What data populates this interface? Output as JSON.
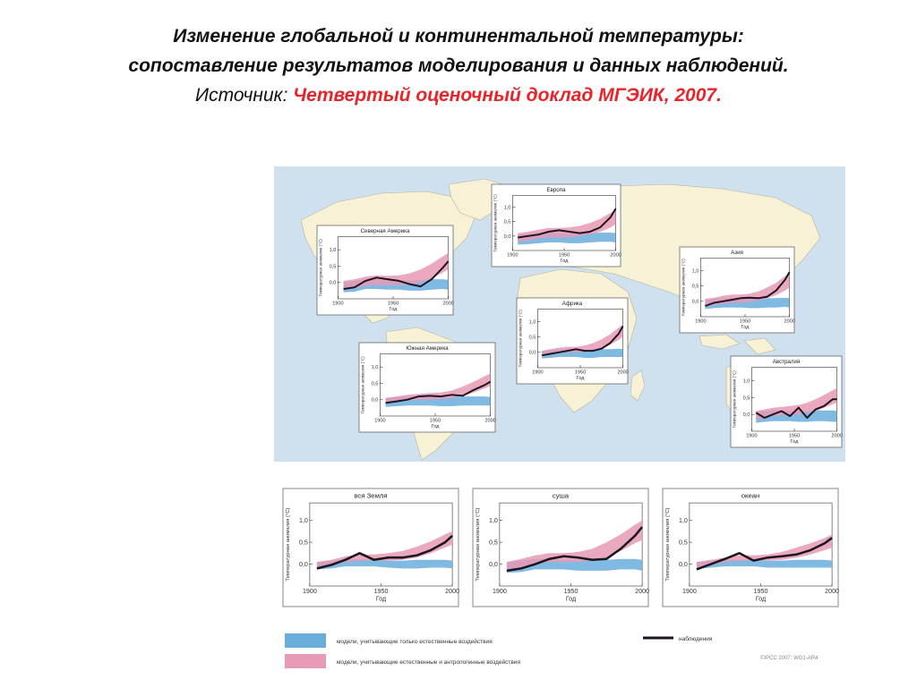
{
  "slide": {
    "title_line1": "Изменение глобальной и континентальной температуры:",
    "title_line2": "сопоставление результатов моделирования и данных наблюдений.",
    "source_label": "Источник:",
    "source_name": "Четвертый оценочный доклад МГЭИК, 2007."
  },
  "colors": {
    "ocean": "#cfe0ee",
    "land": "#f7f2d6",
    "natural_band": "#6aaede",
    "combined_band": "#e79ab5",
    "observed": "#1c1420"
  },
  "chart_data": [
    {
      "type": "line",
      "title": "Северная Америка",
      "xlabel": "Год",
      "ylabel": "Температурная аномалия (°C)",
      "x_ticks": [
        "1900",
        "1950",
        "2000"
      ],
      "y_ticks": [
        "1,0",
        "0,5",
        "0,0"
      ],
      "xlim": [
        1900,
        2000
      ],
      "ylim": [
        -0.5,
        1.4
      ],
      "x": [
        1905,
        1915,
        1925,
        1935,
        1945,
        1955,
        1965,
        1975,
        1985,
        1995,
        2000
      ],
      "observed": [
        -0.2,
        -0.15,
        0.05,
        0.15,
        0.1,
        0.05,
        -0.05,
        -0.12,
        0.1,
        0.45,
        0.65
      ],
      "natural_low": [
        -0.3,
        -0.28,
        -0.2,
        -0.2,
        -0.22,
        -0.22,
        -0.25,
        -0.25,
        -0.22,
        -0.2,
        -0.22
      ],
      "natural_high": [
        0.02,
        0.05,
        0.08,
        0.1,
        0.08,
        0.08,
        0.05,
        0.08,
        0.1,
        0.1,
        0.08
      ],
      "combined_low": [
        -0.22,
        -0.18,
        -0.1,
        -0.08,
        -0.08,
        -0.08,
        -0.05,
        0.0,
        0.12,
        0.3,
        0.4
      ],
      "combined_high": [
        0.05,
        0.1,
        0.18,
        0.22,
        0.2,
        0.22,
        0.28,
        0.4,
        0.58,
        0.8,
        0.9
      ]
    },
    {
      "type": "line",
      "title": "Европа",
      "xlabel": "Год",
      "ylabel": "Температурная аномалия (°C)",
      "x_ticks": [
        "1900",
        "1950",
        "2000"
      ],
      "y_ticks": [
        "1,0",
        "0,5",
        "0,0"
      ],
      "xlim": [
        1900,
        2000
      ],
      "ylim": [
        -0.5,
        1.4
      ],
      "x": [
        1905,
        1915,
        1925,
        1935,
        1945,
        1955,
        1965,
        1975,
        1985,
        1995,
        2000
      ],
      "observed": [
        -0.05,
        0.0,
        0.05,
        0.15,
        0.2,
        0.15,
        0.1,
        0.15,
        0.3,
        0.65,
        0.95
      ],
      "natural_low": [
        -0.3,
        -0.28,
        -0.25,
        -0.22,
        -0.22,
        -0.25,
        -0.25,
        -0.22,
        -0.2,
        -0.2,
        -0.22
      ],
      "natural_high": [
        0.05,
        0.08,
        0.12,
        0.12,
        0.1,
        0.08,
        0.08,
        0.1,
        0.12,
        0.12,
        0.1
      ],
      "combined_low": [
        -0.2,
        -0.15,
        -0.08,
        -0.05,
        -0.05,
        -0.05,
        0.0,
        0.05,
        0.15,
        0.3,
        0.4
      ],
      "combined_high": [
        0.1,
        0.15,
        0.22,
        0.28,
        0.28,
        0.3,
        0.35,
        0.45,
        0.6,
        0.8,
        0.92
      ]
    },
    {
      "type": "line",
      "title": "Азия",
      "xlabel": "Год",
      "ylabel": "Температурная аномалия (°C)",
      "x_ticks": [
        "1900",
        "1950",
        "2000"
      ],
      "y_ticks": [
        "1,0",
        "0,5",
        "0,0"
      ],
      "xlim": [
        1900,
        2000
      ],
      "ylim": [
        -0.5,
        1.4
      ],
      "x": [
        1905,
        1915,
        1925,
        1935,
        1945,
        1955,
        1965,
        1975,
        1985,
        1995,
        2000
      ],
      "observed": [
        -0.15,
        -0.05,
        0.0,
        0.05,
        0.1,
        0.12,
        0.1,
        0.15,
        0.35,
        0.7,
        0.95
      ],
      "natural_low": [
        -0.25,
        -0.22,
        -0.2,
        -0.2,
        -0.2,
        -0.22,
        -0.22,
        -0.2,
        -0.2,
        -0.18,
        -0.2
      ],
      "natural_high": [
        0.05,
        0.08,
        0.1,
        0.1,
        0.08,
        0.08,
        0.08,
        0.1,
        0.1,
        0.12,
        0.1
      ],
      "combined_low": [
        -0.18,
        -0.12,
        -0.08,
        -0.05,
        -0.05,
        -0.02,
        0.02,
        0.1,
        0.2,
        0.35,
        0.45
      ],
      "combined_high": [
        0.08,
        0.12,
        0.18,
        0.22,
        0.22,
        0.25,
        0.32,
        0.45,
        0.6,
        0.82,
        0.92
      ]
    },
    {
      "type": "line",
      "title": "Африка",
      "xlabel": "Год",
      "ylabel": "Температурная аномалия (°C)",
      "x_ticks": [
        "1900",
        "1950",
        "2000"
      ],
      "y_ticks": [
        "1,0",
        "0,5",
        "0,0"
      ],
      "xlim": [
        1900,
        2000
      ],
      "ylim": [
        -0.5,
        1.4
      ],
      "x": [
        1905,
        1915,
        1925,
        1935,
        1945,
        1955,
        1965,
        1975,
        1985,
        1995,
        2000
      ],
      "observed": [
        -0.1,
        -0.05,
        0.0,
        0.05,
        0.1,
        0.05,
        0.05,
        0.12,
        0.3,
        0.6,
        0.85
      ],
      "natural_low": [
        -0.2,
        -0.18,
        -0.15,
        -0.15,
        -0.15,
        -0.18,
        -0.18,
        -0.15,
        -0.15,
        -0.15,
        -0.15
      ],
      "natural_high": [
        0.05,
        0.08,
        0.1,
        0.1,
        0.08,
        0.08,
        0.08,
        0.1,
        0.1,
        0.12,
        0.1
      ],
      "combined_low": [
        -0.12,
        -0.08,
        -0.02,
        0.0,
        0.0,
        0.02,
        0.05,
        0.12,
        0.25,
        0.4,
        0.5
      ],
      "combined_high": [
        0.05,
        0.1,
        0.15,
        0.18,
        0.18,
        0.22,
        0.3,
        0.42,
        0.58,
        0.8,
        0.9
      ]
    },
    {
      "type": "line",
      "title": "Южная Америка",
      "xlabel": "Год",
      "ylabel": "Температурная аномалия (°C)",
      "x_ticks": [
        "1900",
        "1950",
        "2000"
      ],
      "y_ticks": [
        "1,0",
        "0,5",
        "0,0"
      ],
      "xlim": [
        1900,
        2000
      ],
      "ylim": [
        -0.5,
        1.4
      ],
      "x": [
        1905,
        1915,
        1925,
        1935,
        1945,
        1955,
        1965,
        1975,
        1985,
        1995,
        2000
      ],
      "observed": [
        -0.1,
        -0.05,
        0.0,
        0.1,
        0.12,
        0.1,
        0.15,
        0.12,
        0.3,
        0.45,
        0.55
      ],
      "natural_low": [
        -0.22,
        -0.2,
        -0.18,
        -0.18,
        -0.18,
        -0.2,
        -0.2,
        -0.18,
        -0.18,
        -0.18,
        -0.18
      ],
      "natural_high": [
        0.05,
        0.08,
        0.1,
        0.1,
        0.08,
        0.08,
        0.08,
        0.1,
        0.1,
        0.1,
        0.08
      ],
      "combined_low": [
        -0.12,
        -0.08,
        -0.02,
        0.0,
        0.0,
        0.02,
        0.05,
        0.12,
        0.22,
        0.35,
        0.42
      ],
      "combined_high": [
        0.05,
        0.1,
        0.15,
        0.18,
        0.2,
        0.22,
        0.28,
        0.4,
        0.55,
        0.72,
        0.8
      ]
    },
    {
      "type": "line",
      "title": "Австралия",
      "xlabel": "Год",
      "ylabel": "Температурная аномалия (°C)",
      "x_ticks": [
        "1900",
        "1950",
        "2000"
      ],
      "y_ticks": [
        "1,0",
        "0,5",
        "0,0"
      ],
      "xlim": [
        1900,
        2000
      ],
      "ylim": [
        -0.5,
        1.4
      ],
      "x": [
        1905,
        1915,
        1925,
        1935,
        1945,
        1955,
        1965,
        1975,
        1985,
        1995,
        2000
      ],
      "observed": [
        0.05,
        -0.1,
        0.0,
        0.1,
        -0.05,
        0.2,
        -0.1,
        0.15,
        0.25,
        0.45,
        0.45
      ],
      "natural_low": [
        -0.25,
        -0.22,
        -0.2,
        -0.2,
        -0.2,
        -0.22,
        -0.22,
        -0.2,
        -0.2,
        -0.22,
        -0.22
      ],
      "natural_high": [
        0.08,
        0.1,
        0.12,
        0.12,
        0.1,
        0.1,
        0.1,
        0.12,
        0.12,
        0.12,
        0.1
      ],
      "combined_low": [
        -0.15,
        -0.1,
        -0.05,
        -0.02,
        -0.02,
        0.0,
        0.05,
        0.1,
        0.2,
        0.3,
        0.35
      ],
      "combined_high": [
        0.1,
        0.15,
        0.2,
        0.22,
        0.25,
        0.28,
        0.35,
        0.45,
        0.58,
        0.72,
        0.78
      ]
    },
    {
      "type": "line",
      "title": "вся Земля",
      "xlabel": "Год",
      "ylabel": "Температурная аномалия (°C)",
      "x_ticks": [
        "1900",
        "1950",
        "2000"
      ],
      "y_ticks": [
        "1,0",
        "0,5",
        "0,0"
      ],
      "xlim": [
        1900,
        2000
      ],
      "ylim": [
        -0.5,
        1.4
      ],
      "x": [
        1905,
        1915,
        1925,
        1935,
        1945,
        1955,
        1965,
        1975,
        1985,
        1995,
        2000
      ],
      "observed": [
        -0.1,
        -0.02,
        0.1,
        0.25,
        0.1,
        0.15,
        0.15,
        0.2,
        0.32,
        0.5,
        0.65
      ],
      "natural_low": [
        -0.12,
        -0.1,
        -0.05,
        -0.05,
        -0.05,
        -0.08,
        -0.1,
        -0.1,
        -0.08,
        -0.08,
        -0.1
      ],
      "natural_high": [
        0.05,
        0.08,
        0.12,
        0.12,
        0.1,
        0.08,
        0.08,
        0.1,
        0.1,
        0.1,
        0.08
      ],
      "combined_low": [
        -0.08,
        -0.02,
        0.05,
        0.08,
        0.08,
        0.08,
        0.1,
        0.15,
        0.25,
        0.38,
        0.45
      ],
      "combined_high": [
        0.05,
        0.1,
        0.18,
        0.22,
        0.22,
        0.25,
        0.3,
        0.4,
        0.52,
        0.68,
        0.75
      ]
    },
    {
      "type": "line",
      "title": "суша",
      "xlabel": "Год",
      "ylabel": "Температурная аномалия (°C)",
      "x_ticks": [
        "1900",
        "1950",
        "2000"
      ],
      "y_ticks": [
        "1,0",
        "0,5",
        "0,0"
      ],
      "xlim": [
        1900,
        2000
      ],
      "ylim": [
        -0.5,
        1.4
      ],
      "x": [
        1905,
        1915,
        1925,
        1935,
        1945,
        1955,
        1965,
        1975,
        1985,
        1995,
        2000
      ],
      "observed": [
        -0.15,
        -0.1,
        0.0,
        0.12,
        0.18,
        0.15,
        0.1,
        0.12,
        0.35,
        0.65,
        0.85
      ],
      "natural_low": [
        -0.2,
        -0.18,
        -0.12,
        -0.12,
        -0.12,
        -0.15,
        -0.15,
        -0.15,
        -0.12,
        -0.12,
        -0.15
      ],
      "natural_high": [
        0.05,
        0.08,
        0.12,
        0.12,
        0.1,
        0.1,
        0.08,
        0.1,
        0.12,
        0.12,
        0.1
      ],
      "combined_low": [
        -0.15,
        -0.08,
        0.0,
        0.05,
        0.05,
        0.05,
        0.08,
        0.15,
        0.3,
        0.48,
        0.55
      ],
      "combined_high": [
        0.05,
        0.12,
        0.2,
        0.25,
        0.25,
        0.28,
        0.35,
        0.5,
        0.68,
        0.9,
        1.0
      ]
    },
    {
      "type": "line",
      "title": "океан",
      "xlabel": "Год",
      "ylabel": "Температурная аномалия (°C)",
      "x_ticks": [
        "1900",
        "1950",
        "2000"
      ],
      "y_ticks": [
        "1,0",
        "0,5",
        "0,0"
      ],
      "xlim": [
        1900,
        2000
      ],
      "ylim": [
        -0.5,
        1.4
      ],
      "x": [
        1905,
        1915,
        1925,
        1935,
        1945,
        1955,
        1965,
        1975,
        1985,
        1995,
        2000
      ],
      "observed": [
        -0.12,
        0.0,
        0.12,
        0.25,
        0.08,
        0.15,
        0.18,
        0.22,
        0.32,
        0.48,
        0.6
      ],
      "natural_low": [
        -0.1,
        -0.08,
        -0.05,
        -0.05,
        -0.05,
        -0.08,
        -0.08,
        -0.08,
        -0.08,
        -0.08,
        -0.08
      ],
      "natural_high": [
        0.05,
        0.08,
        0.1,
        0.1,
        0.1,
        0.08,
        0.08,
        0.1,
        0.1,
        0.1,
        0.08
      ],
      "combined_low": [
        -0.08,
        -0.02,
        0.05,
        0.08,
        0.08,
        0.08,
        0.1,
        0.15,
        0.22,
        0.32,
        0.38
      ],
      "combined_high": [
        0.05,
        0.1,
        0.15,
        0.2,
        0.2,
        0.22,
        0.28,
        0.38,
        0.48,
        0.6,
        0.68
      ]
    }
  ],
  "legend": {
    "natural": "модели, учитывающие только естественные воздействия",
    "combined": "модели, учитывающие естественные и антропогенные воздействия",
    "observed": "наблюдения"
  },
  "credit": "©IPCC 2007: WG1-AR4"
}
